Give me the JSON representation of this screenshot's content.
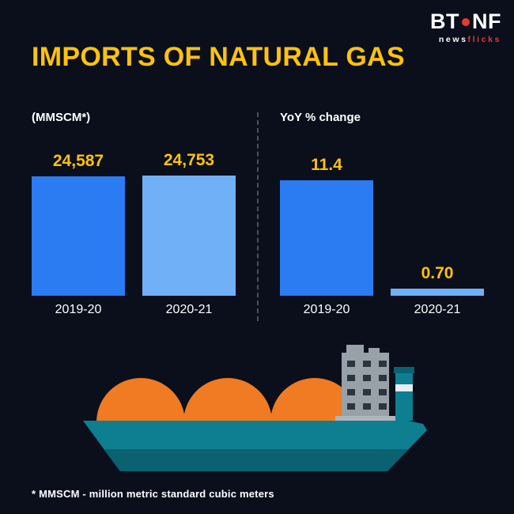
{
  "logo": {
    "bt": "BT",
    "nf": "NF",
    "tagline_news": "news",
    "tagline_flicks": "flicks"
  },
  "title": "IMPORTS OF NATURAL GAS",
  "footnote": "* MMSCM - million metric standard cubic meters",
  "colors": {
    "background": "#0b0f1c",
    "accent_yellow": "#ffc20e",
    "bar_blue": "#2b7bf3",
    "bar_light_blue": "#6fb0f7",
    "logo_red": "#e23b33",
    "hull_teal": "#0d7f90",
    "hull_dark": "#0a6170",
    "tank_orange": "#f07b22",
    "tower_gray": "#99a1a8",
    "window_dark": "#2c3440"
  },
  "chart_data": [
    {
      "type": "bar",
      "title": "(MMSCM*)",
      "categories": [
        "2019-20",
        "2020-21"
      ],
      "values": [
        24587,
        24753
      ],
      "value_labels": [
        "24,587",
        "24,753"
      ],
      "ylim": [
        0,
        26000
      ],
      "bar_colors": [
        "#2b7bf3",
        "#6fb0f7"
      ],
      "legend": "none",
      "grid": false
    },
    {
      "type": "bar",
      "title": "YoY % change",
      "categories": [
        "2019-20",
        "2020-21"
      ],
      "values": [
        11.4,
        0.7
      ],
      "value_labels": [
        "11.4",
        "0.70"
      ],
      "ylim": [
        0,
        12.5
      ],
      "bar_colors": [
        "#2b7bf3",
        "#6fb0f7"
      ],
      "legend": "none",
      "grid": false
    }
  ]
}
